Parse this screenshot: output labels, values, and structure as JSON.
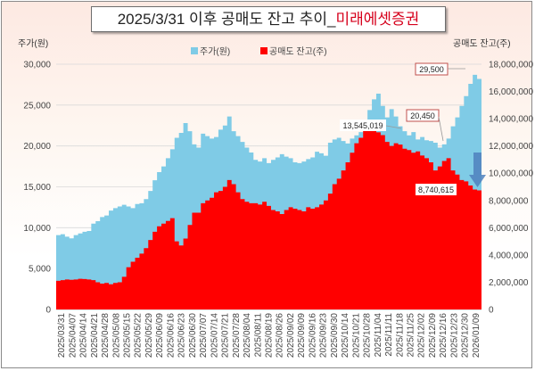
{
  "title": {
    "prefix": "2025/3/31 이후 공매도 잔고 추이_",
    "highlight": "미래에셋증권"
  },
  "colors": {
    "price": "#7fcbe6",
    "short": "#ff0000",
    "arrow": "#4f81bd",
    "annotation_border": "#c0504d"
  },
  "chart_data": {
    "type": "area",
    "title": "2025/3/31 이후 공매도 잔고 추이_미래에셋증권",
    "ylabel_left": "주가(원)",
    "ylabel_right": "공매도 잔고(주)",
    "xlabel": "",
    "grid": true,
    "legend_position": "top",
    "y_left": {
      "min": 0,
      "max": 30000,
      "ticks": [
        "0",
        "5,000",
        "10,000",
        "15,000",
        "20,000",
        "25,000",
        "30,000"
      ]
    },
    "y_right": {
      "min": 0,
      "max": 18000000,
      "ticks": [
        "0",
        "2,000,000",
        "4,000,000",
        "6,000,000",
        "8,000,000",
        "10,000,000",
        "12,000,000",
        "14,000,000",
        "16,000,000",
        "18,000,000"
      ]
    },
    "x_tick_labels": [
      "2025/03/31",
      "2025/04/07",
      "2025/04/14",
      "2025/04/21",
      "2025/04/28",
      "2025/05/08",
      "2025/05/15",
      "2025/05/22",
      "2025/05/29",
      "2025/06/09",
      "2025/06/16",
      "2025/06/23",
      "2025/06/30",
      "2025/07/07",
      "2025/07/14",
      "2025/07/21",
      "2025/07/28",
      "2025/08/04",
      "2025/08/11",
      "2025/08/19",
      "2025/08/26",
      "2025/09/02",
      "2025/09/09",
      "2025/09/16",
      "2025/09/23",
      "2025/09/30",
      "2025/10/14",
      "2025/10/21",
      "2025/10/28",
      "2025/11/04",
      "2025/11/11",
      "2025/11/18",
      "2025/11/25",
      "2025/12/02",
      "2025/12/09",
      "2025/12/16",
      "2025/12/23",
      "2025/12/30",
      "2026/01/09"
    ],
    "series": [
      {
        "name": "주가(원)",
        "axis": "left",
        "values": [
          9100,
          9200,
          8900,
          8700,
          9100,
          9300,
          9500,
          9600,
          10500,
          10800,
          11300,
          11500,
          12100,
          12400,
          12600,
          12800,
          12600,
          12400,
          12900,
          13000,
          13500,
          14500,
          15800,
          16800,
          17500,
          18500,
          19600,
          21000,
          21600,
          22800,
          21800,
          20200,
          19800,
          21500,
          21200,
          20900,
          21100,
          22000,
          22500,
          23600,
          21800,
          21200,
          20500,
          19800,
          19200,
          18300,
          18100,
          18500,
          17900,
          18300,
          18600,
          19000,
          18700,
          18500,
          18000,
          17900,
          18100,
          18400,
          18600,
          19300,
          19100,
          18800,
          20400,
          20800,
          21000,
          20600,
          20300,
          20900,
          21300,
          21700,
          22600,
          24400,
          25700,
          26400,
          24900,
          23500,
          24500,
          23600,
          22400,
          21800,
          21300,
          21700,
          20800,
          21100,
          20700,
          20600,
          20400,
          19800,
          20200,
          20900,
          22400,
          23500,
          24900,
          26100,
          27600,
          28700,
          28200
        ]
      },
      {
        "name": "공매도 잔고(주)",
        "axis": "right",
        "values": [
          2100000,
          2150000,
          2200000,
          2180000,
          2200000,
          2250000,
          2230000,
          2200000,
          2150000,
          2000000,
          1900000,
          1950000,
          1850000,
          1950000,
          2000000,
          2400000,
          3100000,
          3500000,
          3800000,
          4100000,
          4500000,
          5100000,
          5700000,
          6100000,
          6300000,
          6500000,
          6700000,
          5000000,
          4700000,
          5200000,
          6200000,
          7100000,
          7100000,
          7800000,
          8000000,
          8200000,
          8600000,
          8700000,
          9000000,
          9500000,
          9200000,
          8600000,
          8100000,
          7900000,
          7800000,
          7800000,
          7700000,
          7900000,
          7600000,
          7300000,
          7200000,
          7000000,
          7300000,
          7500000,
          7400000,
          7300000,
          7200000,
          7500000,
          7400000,
          7500000,
          7700000,
          8000000,
          8500000,
          9200000,
          9600000,
          10200000,
          10800000,
          11500000,
          12200000,
          12600000,
          13100000,
          13545019,
          13400000,
          13000000,
          12800000,
          12300000,
          12000000,
          12200000,
          12100000,
          11800000,
          11700000,
          11500000,
          11600000,
          11300000,
          11100000,
          10800000,
          10200000,
          10500000,
          10900000,
          11100000,
          10200000,
          9900000,
          9500000,
          9400000,
          9100000,
          8800000,
          8740615
        ]
      }
    ],
    "annotations": [
      {
        "label": "29,500",
        "series": "주가(원)",
        "value": 29500
      },
      {
        "label": "20,450",
        "series": "주가(원)",
        "value": 20450
      },
      {
        "label": "13,545,019",
        "series": "공매도 잔고(주)",
        "value": 13545019
      },
      {
        "label": "8,740,615",
        "series": "공매도 잔고(주)",
        "value": 8740615
      }
    ]
  }
}
